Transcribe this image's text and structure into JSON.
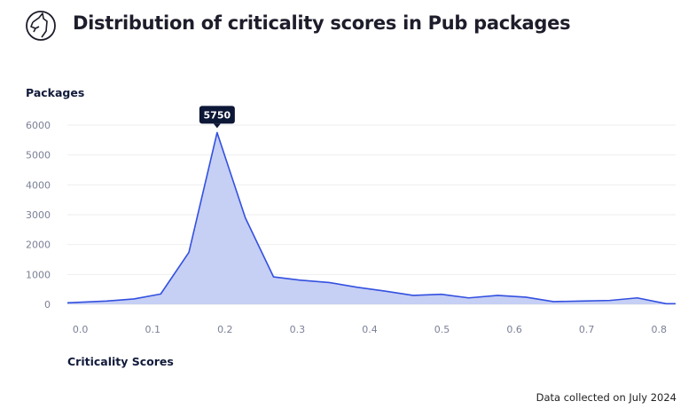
{
  "header": {
    "title": "Distribution of criticality scores in Pub packages",
    "logo_icon": "unicorn-icon"
  },
  "footer": {
    "note": "Data collected on July 2024"
  },
  "chart_data": {
    "type": "area",
    "title": "Distribution of criticality scores in Pub packages",
    "xlabel": "Criticality Scores",
    "ylabel": "Packages",
    "xlim": [
      -0.018,
      0.823
    ],
    "ylim": [
      0,
      6000
    ],
    "grid": true,
    "x_ticks": [
      "0.0",
      "0.1",
      "0.2",
      "0.3",
      "0.4",
      "0.5",
      "0.6",
      "0.7",
      "0.8"
    ],
    "y_ticks": [
      "0",
      "1000",
      "2000",
      "3000",
      "4000",
      "5000",
      "6000"
    ],
    "x": [
      -0.018,
      0.036,
      0.074,
      0.111,
      0.15,
      0.189,
      0.228,
      0.267,
      0.303,
      0.344,
      0.383,
      0.422,
      0.46,
      0.499,
      0.537,
      0.577,
      0.616,
      0.654,
      0.693,
      0.732,
      0.77,
      0.81,
      0.823
    ],
    "values": [
      50,
      110,
      180,
      345,
      1740,
      5750,
      2900,
      920,
      810,
      730,
      570,
      440,
      300,
      335,
      215,
      300,
      240,
      90,
      110,
      130,
      215,
      20,
      20
    ],
    "annotation": {
      "label": "5750",
      "x": 0.189,
      "y": 5750
    },
    "colors": {
      "line": "#3350e0",
      "fill": "#c6cff4",
      "grid": "#eeeeee",
      "tooltip": "#0d1736"
    }
  }
}
